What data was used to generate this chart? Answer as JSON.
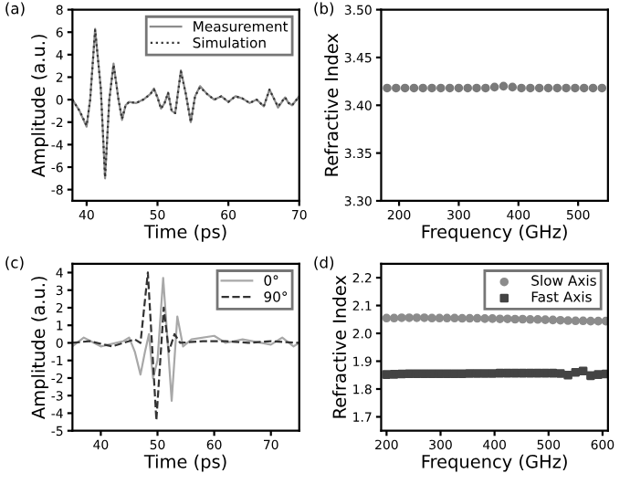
{
  "chart_data": [
    {
      "type": "line",
      "xlabel": "Time (ps)",
      "ylabel": "Amplitude (a.u.)",
      "annotations": [
        "(a)"
      ],
      "xlim": [
        38,
        70
      ],
      "xticks": [
        40,
        50,
        60,
        70
      ],
      "ylim": [
        -9,
        8
      ],
      "yticks": [
        -8,
        -6,
        -4,
        -2,
        0,
        2,
        4,
        6,
        8
      ],
      "grid": false,
      "legend": "top right",
      "series": [
        {
          "name": "Measurement",
          "color": "#8c8c8c",
          "line_style": "solid",
          "x": [
            38,
            39,
            40,
            40.5,
            41.2,
            42,
            42.6,
            43.2,
            43.8,
            44.5,
            45,
            45.5,
            46,
            47,
            48,
            49,
            49.5,
            50,
            50.5,
            51,
            51.5,
            52,
            52.5,
            53.3,
            54,
            54.7,
            55.3,
            56,
            57,
            58,
            59,
            60,
            61,
            62,
            63,
            64,
            65,
            65.8,
            66.5,
            67,
            68,
            68.5,
            69,
            70
          ],
          "values": [
            0,
            -1,
            -2.4,
            0,
            6.3,
            1,
            -7,
            0,
            3.2,
            0,
            -1.8,
            -0.5,
            -0.2,
            -0.3,
            0,
            0.5,
            1,
            0.2,
            -0.8,
            -0.3,
            0.6,
            -1,
            -1.2,
            2.6,
            0.5,
            -2,
            0.3,
            1.2,
            0.5,
            0,
            0.3,
            -0.2,
            0.3,
            0.1,
            -0.3,
            0,
            -0.6,
            0.9,
            0,
            -0.7,
            0.2,
            -0.3,
            -0.5,
            0.3
          ]
        },
        {
          "name": "Simulation",
          "color": "#333333",
          "line_style": "dotted",
          "x": [
            38,
            39,
            40,
            40.5,
            41.2,
            42,
            42.6,
            43.2,
            43.8,
            44.5,
            45,
            45.5,
            46,
            47,
            48,
            49,
            49.5,
            50,
            50.5,
            51,
            51.5,
            52,
            52.5,
            53.3,
            54,
            54.7,
            55.3,
            56,
            57,
            58,
            59,
            60,
            61,
            62,
            63,
            64,
            65,
            65.8,
            66.5,
            67,
            68,
            68.5,
            69,
            70
          ],
          "values": [
            0,
            -1,
            -2.3,
            0,
            6.2,
            1,
            -6.9,
            0,
            3.1,
            0,
            -1.7,
            -0.5,
            -0.2,
            -0.3,
            0,
            0.5,
            0.9,
            0.2,
            -0.8,
            -0.3,
            0.6,
            -1,
            -1.2,
            2.5,
            0.5,
            -2,
            0.3,
            1.1,
            0.5,
            0,
            0.3,
            -0.2,
            0.3,
            0.1,
            -0.3,
            0,
            -0.6,
            0.9,
            0,
            -0.6,
            0.2,
            -0.3,
            -0.5,
            0.3
          ]
        }
      ]
    },
    {
      "type": "scatter",
      "xlabel": "Frequency (GHz)",
      "ylabel": "Refractive Index",
      "annotations": [
        "(b)"
      ],
      "xlim": [
        170,
        550
      ],
      "xticks": [
        200,
        300,
        400,
        500
      ],
      "ylim": [
        3.3,
        3.5
      ],
      "yticks": [
        {
          "value": 3.3,
          "label": "3.30"
        },
        3.35,
        {
          "value": 3.4,
          "label": "3.40"
        },
        3.45,
        {
          "value": 3.5,
          "label": "3.50"
        }
      ],
      "grid": false,
      "series": [
        {
          "color": "#7a7a7a",
          "marker": "circle",
          "x": [
            180,
            195,
            210,
            225,
            240,
            255,
            270,
            285,
            300,
            315,
            330,
            345,
            360,
            375,
            390,
            405,
            420,
            435,
            450,
            465,
            480,
            495,
            510,
            525,
            540
          ],
          "values": [
            3.418,
            3.418,
            3.418,
            3.418,
            3.418,
            3.418,
            3.418,
            3.418,
            3.418,
            3.418,
            3.418,
            3.418,
            3.419,
            3.42,
            3.419,
            3.418,
            3.418,
            3.418,
            3.418,
            3.418,
            3.418,
            3.418,
            3.418,
            3.418,
            3.418
          ]
        }
      ]
    },
    {
      "type": "line",
      "xlabel": "Time (ps)",
      "ylabel": "Amplitude (a.u.)",
      "annotations": [
        "(c)"
      ],
      "xlim": [
        35,
        75
      ],
      "xticks": [
        40,
        50,
        60,
        70
      ],
      "ylim": [
        -5,
        4.5
      ],
      "yticks": [
        -5,
        -4,
        -3,
        -2,
        -1,
        0,
        1,
        2,
        3,
        4
      ],
      "grid": false,
      "legend": "top right",
      "series": [
        {
          "name": "0°",
          "color": "#a8a8a8",
          "line_style": "solid",
          "x": [
            35,
            37,
            40,
            44,
            45,
            46,
            47,
            47.8,
            48.5,
            49.2,
            50,
            51,
            51.8,
            52.5,
            53.5,
            54.5,
            56,
            60,
            62,
            65,
            70,
            72,
            74,
            75
          ],
          "values": [
            -0.2,
            0.3,
            -0.2,
            0.1,
            0.3,
            -0.5,
            -1.8,
            -0.5,
            0.5,
            -2,
            -1,
            3.7,
            0,
            -3.3,
            1.5,
            -0.2,
            0.2,
            0.4,
            0,
            0.2,
            -0.1,
            0.3,
            -0.2,
            0
          ]
        },
        {
          "name": "90°",
          "color": "#333333",
          "line_style": "dashed",
          "x": [
            35,
            38,
            42,
            46,
            47,
            48.3,
            49.8,
            51.1,
            52,
            53,
            54,
            58,
            62,
            66,
            70,
            75
          ],
          "values": [
            0,
            0.1,
            -0.2,
            0.2,
            0,
            4.0,
            -4.4,
            2.0,
            -0.5,
            0.5,
            0,
            0.1,
            0.1,
            0,
            0.1,
            0
          ]
        }
      ]
    },
    {
      "type": "scatter",
      "xlabel": "Frequency (GHz)",
      "ylabel": "Refractive Index",
      "annotations": [
        "(d)"
      ],
      "xlim": [
        190,
        610
      ],
      "xticks": [
        200,
        300,
        400,
        500,
        600
      ],
      "ylim": [
        1.65,
        2.25
      ],
      "yticks": [
        1.7,
        1.8,
        1.9,
        {
          "value": 2.0,
          "label": "2.0"
        },
        2.1,
        2.2
      ],
      "grid": false,
      "legend": "top right",
      "series": [
        {
          "name": "Slow Axis",
          "color": "#8c8c8c",
          "marker": "circle",
          "x": [
            200,
            214,
            228,
            242,
            256,
            270,
            284,
            298,
            312,
            326,
            340,
            354,
            368,
            382,
            396,
            410,
            424,
            438,
            452,
            466,
            480,
            494,
            508,
            522,
            536,
            550,
            564,
            578,
            592,
            606
          ],
          "values": [
            2.055,
            2.055,
            2.056,
            2.056,
            2.056,
            2.056,
            2.055,
            2.055,
            2.055,
            2.055,
            2.054,
            2.054,
            2.054,
            2.053,
            2.053,
            2.052,
            2.052,
            2.051,
            2.051,
            2.05,
            2.05,
            2.049,
            2.048,
            2.047,
            2.046,
            2.045,
            2.045,
            2.044,
            2.044,
            2.044
          ]
        },
        {
          "name": "Fast Axis",
          "color": "#444444",
          "marker": "square",
          "x": [
            200,
            214,
            228,
            242,
            256,
            270,
            284,
            298,
            312,
            326,
            340,
            354,
            368,
            382,
            396,
            410,
            424,
            438,
            452,
            466,
            480,
            494,
            508,
            522,
            536,
            550,
            564,
            578,
            592,
            606
          ],
          "values": [
            1.852,
            1.853,
            1.854,
            1.855,
            1.855,
            1.855,
            1.855,
            1.855,
            1.855,
            1.855,
            1.855,
            1.856,
            1.856,
            1.856,
            1.856,
            1.857,
            1.857,
            1.857,
            1.857,
            1.857,
            1.857,
            1.857,
            1.857,
            1.856,
            1.85,
            1.86,
            1.865,
            1.848,
            1.852,
            1.854
          ]
        }
      ]
    }
  ]
}
